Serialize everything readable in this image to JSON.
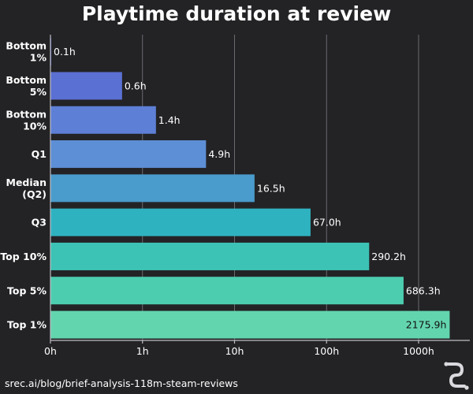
{
  "chart_data": {
    "type": "bar",
    "orientation": "horizontal",
    "title": "Playtime duration at review",
    "xlabel": "",
    "ylabel": "",
    "x_scale": "log",
    "xlim": [
      0.1,
      3000
    ],
    "grid": true,
    "x_ticks": [
      {
        "value": 0.1,
        "label": "0h"
      },
      {
        "value": 1,
        "label": "1h"
      },
      {
        "value": 10,
        "label": "10h"
      },
      {
        "value": 100,
        "label": "100h"
      },
      {
        "value": 1000,
        "label": "1000h"
      }
    ],
    "categories": [
      "Bottom\n1%",
      "Bottom\n5%",
      "Bottom\n10%",
      "Q1",
      "Median\n(Q2)",
      "Q3",
      "Top 10%",
      "Top 5%",
      "Top 1%"
    ],
    "values": [
      0.1,
      0.6,
      1.4,
      4.9,
      16.5,
      67.0,
      290.2,
      686.3,
      2175.9
    ],
    "value_labels": [
      "0.1h",
      "0.6h",
      "1.4h",
      "4.9h",
      "16.5h",
      "67.0h",
      "290.2h",
      "686.3h",
      "2175.9h"
    ],
    "colors": [
      "#5767d0",
      "#5b70d3",
      "#5d7fd6",
      "#5d8fd6",
      "#4a9ccc",
      "#2fb2c0",
      "#3cc3b5",
      "#4ccdb0",
      "#63d5ae"
    ]
  },
  "source": "srec.ai/blog/brief-analysis-118m-steam-reviews",
  "logo_icon": "srec-logo-icon"
}
